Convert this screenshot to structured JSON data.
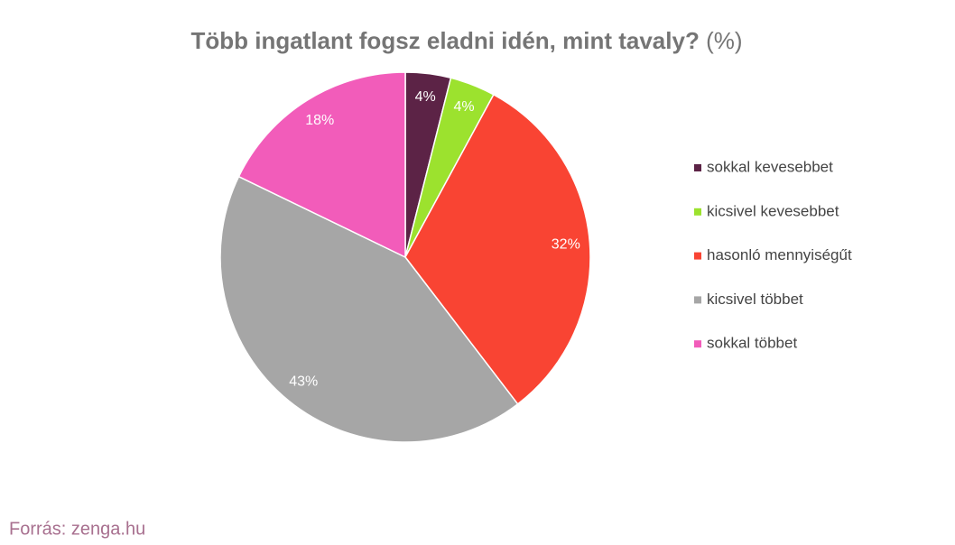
{
  "chart_data": {
    "type": "pie",
    "title": "Több ingatlant fogsz eladni idén, mint tavaly?",
    "unit": "(%)",
    "source": "Forrás: zenga.hu",
    "categories": [
      "sokkal kevesebbet",
      "kicsivel kevesebbet",
      "hasonló mennyiségűt",
      "kicsivel többet",
      "sokkal többet"
    ],
    "values": [
      4,
      4,
      32,
      43,
      18
    ],
    "value_labels": [
      "4%",
      "4%",
      "32%",
      "43%",
      "18%"
    ],
    "colors": [
      "#5c2346",
      "#9ce22e",
      "#f94433",
      "#a6a6a6",
      "#f25cba"
    ],
    "legend": "right"
  }
}
